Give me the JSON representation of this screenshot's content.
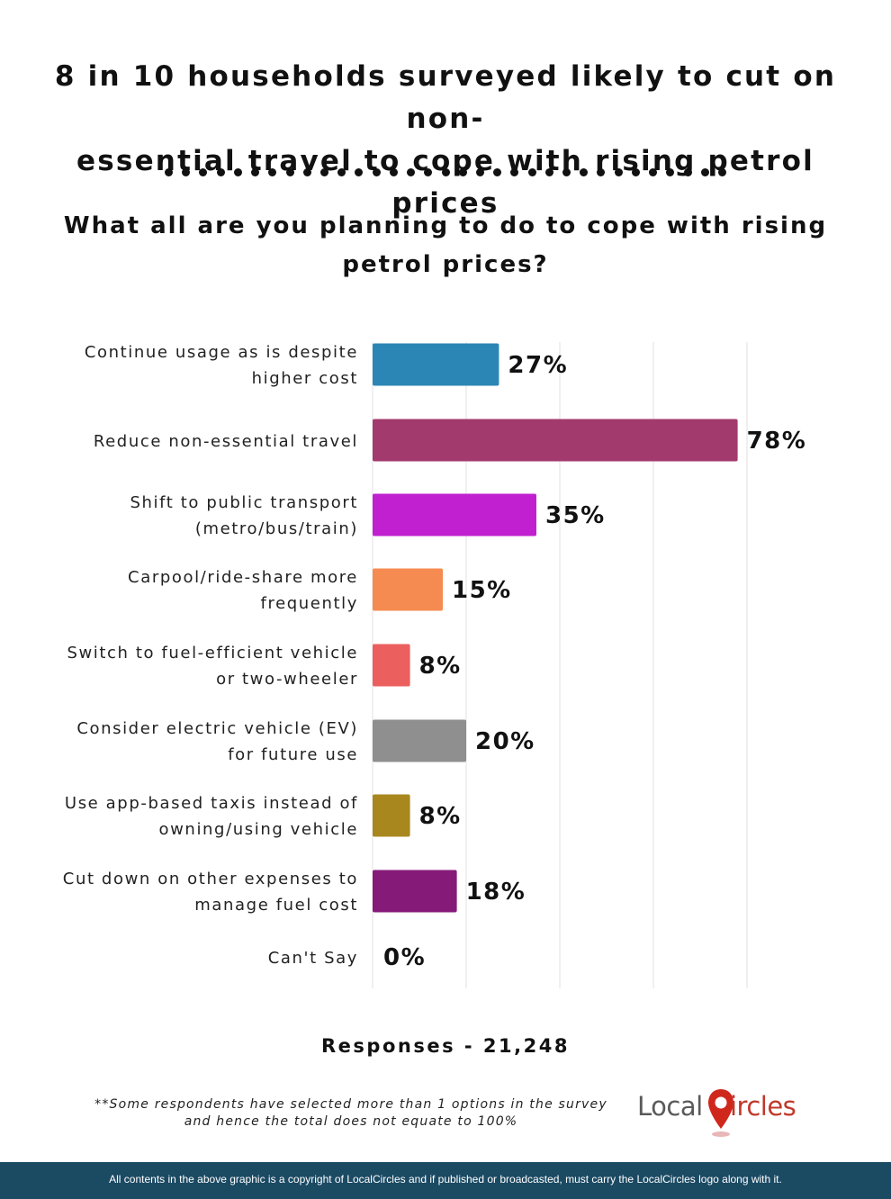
{
  "title_lines": [
    "8 in 10 households surveyed likely to cut on non-",
    "essential travel to cope with rising petrol prices"
  ],
  "subtitle_lines": [
    "What all are you planning to do to cope with rising",
    "petrol prices?"
  ],
  "chart_data": {
    "type": "bar",
    "orientation": "horizontal",
    "categories": [
      [
        "Continue usage as is despite",
        "higher cost"
      ],
      [
        "Reduce non-essential travel"
      ],
      [
        "Shift to public transport",
        "(metro/bus/train)"
      ],
      [
        "Carpool/ride-share more",
        "frequently"
      ],
      [
        "Switch to fuel-efficient vehicle",
        "or two-wheeler"
      ],
      [
        "Consider electric vehicle (EV)",
        "for future use"
      ],
      [
        "Use app-based taxis instead of",
        "owning/using vehicle"
      ],
      [
        "Cut down on other expenses to",
        "manage fuel cost"
      ],
      [
        "Can't Say"
      ]
    ],
    "values": [
      27,
      78,
      35,
      15,
      8,
      20,
      8,
      18,
      0
    ],
    "value_labels": [
      "27%",
      "78%",
      "35%",
      "15%",
      "8%",
      "20%",
      "8%",
      "18%",
      "0%"
    ],
    "colors": [
      "#2b86b5",
      "#a33a6e",
      "#c020d0",
      "#f58b50",
      "#ec5f5f",
      "#8f8f8f",
      "#a8871f",
      "#861a78",
      "#cccccc"
    ],
    "xlim": [
      0,
      80
    ],
    "grid": "vertical",
    "legend": "none"
  },
  "responses": "Responses - 21,248",
  "note_lines": [
    "**Some respondents have selected more than 1 options in the survey",
    "and hence the total does not equate to 100%"
  ],
  "logo": {
    "part1": "Local",
    "part2": "ircles"
  },
  "footer": "All contents in the above graphic is a copyright of LocalCircles and if published or broadcasted, must carry the LocalCircles logo along with it."
}
